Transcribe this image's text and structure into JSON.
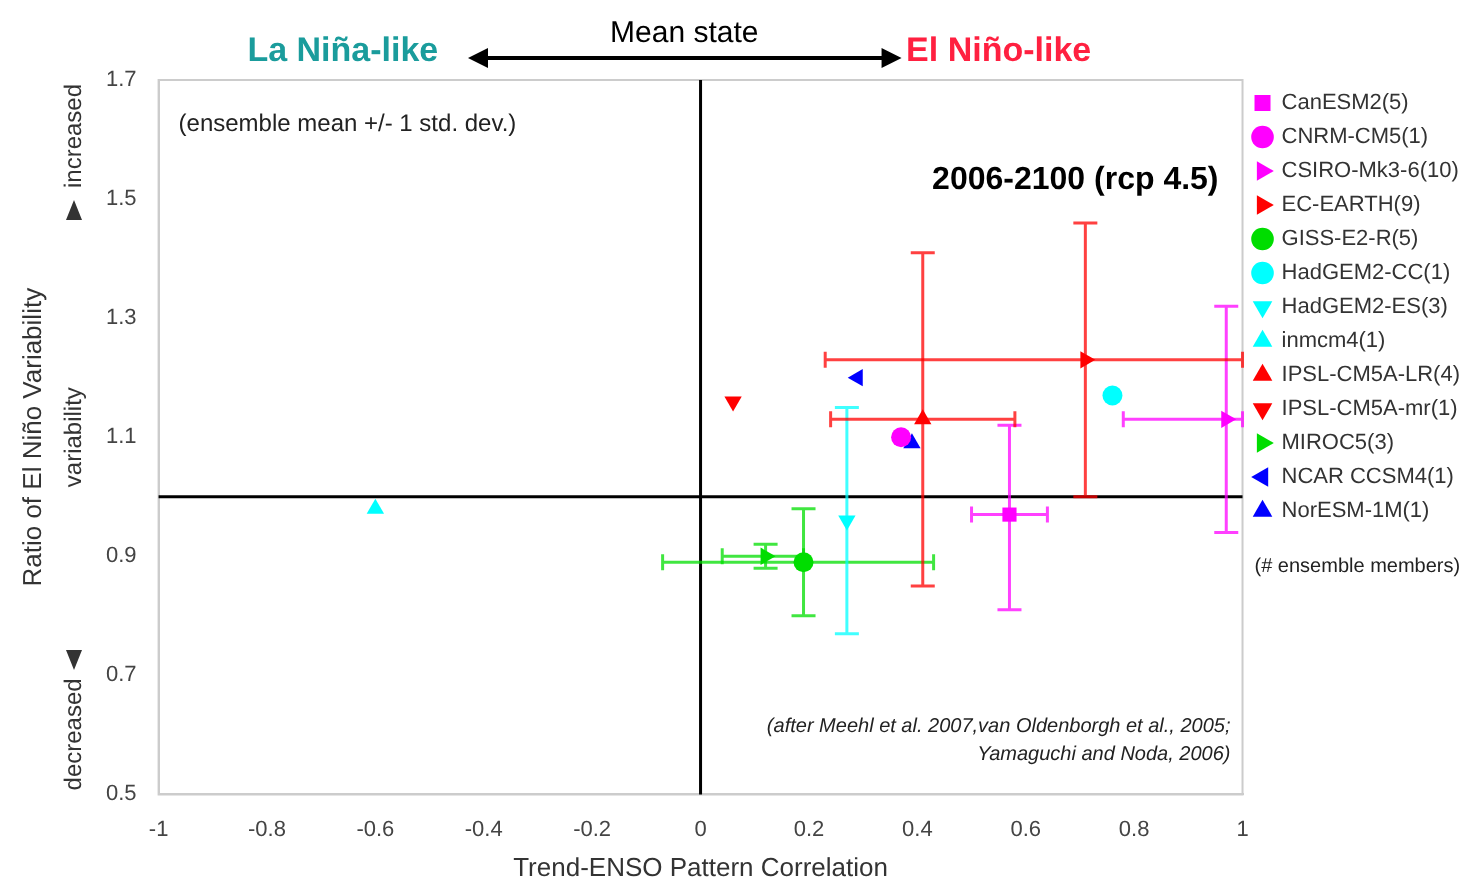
{
  "chart_data": {
    "type": "scatter",
    "ylabel": "Ratio of El Niño Variability",
    "xlabel": "Trend-ENSO Pattern Correlation",
    "xlim": [
      -1,
      1
    ],
    "xticks": [
      -1,
      -0.8,
      -0.6,
      -0.4,
      -0.2,
      0,
      0.2,
      0.4,
      0.6,
      0.8,
      1
    ],
    "ylim": [
      0.5,
      1.7
    ],
    "yticks": [
      0.5,
      0.7,
      0.9,
      1.1,
      1.3,
      1.5,
      1.7
    ],
    "grid": false,
    "legend": "right",
    "ref_lines": [
      {
        "axis": "x",
        "value": 0,
        "color": "#000000"
      },
      {
        "axis": "y",
        "value": 1,
        "color": "#000000"
      }
    ],
    "annotations": [
      "La Niña-like",
      "Mean state",
      "El Niño-like",
      "(ensemble mean +/- 1 std. dev.)",
      "2006-2100 (rcp 4.5)",
      "(after Meehl et al. 2007,van Oldenborgh et al., 2005; Yamaguchi and Noda, 2006)",
      "increased",
      "variability",
      "decreased",
      "(# ensemble members)"
    ],
    "series": [
      {
        "name": "CanESM2(5)",
        "color": "#ff00ff",
        "marker": "square",
        "x": [
          0.57
        ],
        "values": [
          0.97
        ],
        "errors": [
          [
            0.81,
            1.12
          ]
        ],
        "xerrors": [
          [
            0.5,
            0.64
          ]
        ]
      },
      {
        "name": "CNRM-CM5(1)",
        "color": "#ff00ff",
        "marker": "circle",
        "x": [
          0.37
        ],
        "values": [
          1.1
        ]
      },
      {
        "name": "CSIRO-Mk3-6(10)",
        "color": "#ff00ff",
        "marker": "triangle-right",
        "x": [
          0.97
        ],
        "values": [
          1.13
        ],
        "errors": [
          [
            0.94,
            1.32
          ]
        ],
        "xerrors": [
          [
            0.78,
            1
          ]
        ]
      },
      {
        "name": "EC-EARTH(9)",
        "color": "#ff0000",
        "marker": "triangle-right",
        "x": [
          0.71
        ],
        "values": [
          1.23
        ],
        "errors": [
          [
            1,
            1.46
          ]
        ],
        "xerrors": [
          [
            0.23,
            1
          ]
        ]
      },
      {
        "name": "GISS-E2-R(5)",
        "color": "#00dd00",
        "marker": "circle",
        "x": [
          0.19
        ],
        "values": [
          0.89
        ],
        "errors": [
          [
            0.8,
            0.98
          ]
        ],
        "xerrors": [
          [
            -0.07,
            0.43
          ]
        ]
      },
      {
        "name": "HadGEM2-CC(1)",
        "color": "#00ffff",
        "marker": "circle",
        "x": [
          0.76
        ],
        "values": [
          1.17
        ]
      },
      {
        "name": "HadGEM2-ES(3)",
        "color": "#00ffff",
        "marker": "triangle-down",
        "x": [
          0.27
        ],
        "values": [
          0.96
        ],
        "errors": [
          [
            0.77,
            1.15
          ]
        ]
      },
      {
        "name": "inmcm4(1)",
        "color": "#00ffff",
        "marker": "triangle-up",
        "x": [
          -0.6
        ],
        "values": [
          0.98
        ]
      },
      {
        "name": "IPSL-CM5A-LR(4)",
        "color": "#ff0000",
        "marker": "triangle-up",
        "x": [
          0.41
        ],
        "values": [
          1.13
        ],
        "errors": [
          [
            0.85,
            1.41
          ]
        ],
        "xerrors": [
          [
            0.24,
            0.58
          ]
        ]
      },
      {
        "name": "IPSL-CM5A-mr(1)",
        "color": "#ff0000",
        "marker": "triangle-down",
        "x": [
          0.06
        ],
        "values": [
          1.16
        ]
      },
      {
        "name": "MIROC5(3)",
        "color": "#00dd00",
        "marker": "triangle-right",
        "x": [
          0.12
        ],
        "values": [
          0.9
        ],
        "errors": [
          [
            0.88,
            0.92
          ]
        ],
        "xerrors": [
          [
            0.04,
            0.19
          ]
        ]
      },
      {
        "name": "NCAR CCSM4(1)",
        "color": "#0000ff",
        "marker": "triangle-left",
        "x": [
          0.29
        ],
        "values": [
          1.2
        ]
      },
      {
        "name": "NorESM-1M(1)",
        "color": "#0000ff",
        "marker": "triangle-up",
        "x": [
          0.39
        ],
        "values": [
          1.09
        ]
      }
    ]
  }
}
